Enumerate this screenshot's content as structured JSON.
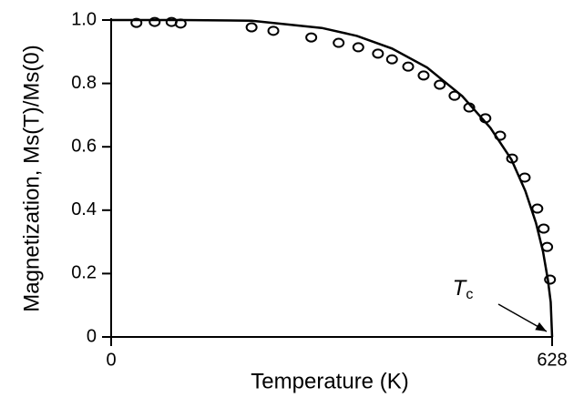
{
  "chart_data": {
    "type": "scatter",
    "xlabel": "Temperature (K)",
    "ylabel": "Magnetization, Ms(T)/Ms(0)",
    "annotation": {
      "text": "T",
      "subscript": "c"
    },
    "xlim": [
      0,
      628
    ],
    "xticks": [
      0,
      628
    ],
    "ylim": [
      0,
      1
    ],
    "yticks": [
      0,
      0.2,
      0.4,
      0.6,
      0.8,
      {
        "value": 1,
        "label": "1.0"
      }
    ],
    "color": "#000000",
    "points": {
      "x": [
        36,
        62,
        86,
        99,
        200,
        231,
        285,
        324,
        352,
        380,
        400,
        423,
        445,
        468,
        489,
        510,
        533,
        554,
        571,
        589,
        607,
        616,
        621,
        625
      ],
      "y": [
        0.991,
        0.994,
        0.994,
        0.989,
        0.977,
        0.966,
        0.945,
        0.928,
        0.914,
        0.894,
        0.876,
        0.853,
        0.825,
        0.796,
        0.761,
        0.724,
        0.69,
        0.635,
        0.563,
        0.503,
        0.405,
        0.342,
        0.284,
        0.181
      ]
    },
    "curve": {
      "x": [
        0,
        100,
        200,
        300,
        350,
        400,
        450,
        500,
        540,
        570,
        590,
        605,
        615,
        622,
        626,
        628
      ],
      "y": [
        1,
        1,
        0.998,
        0.975,
        0.95,
        0.91,
        0.85,
        0.76,
        0.66,
        0.56,
        0.46,
        0.36,
        0.27,
        0.18,
        0.11,
        0
      ]
    }
  }
}
